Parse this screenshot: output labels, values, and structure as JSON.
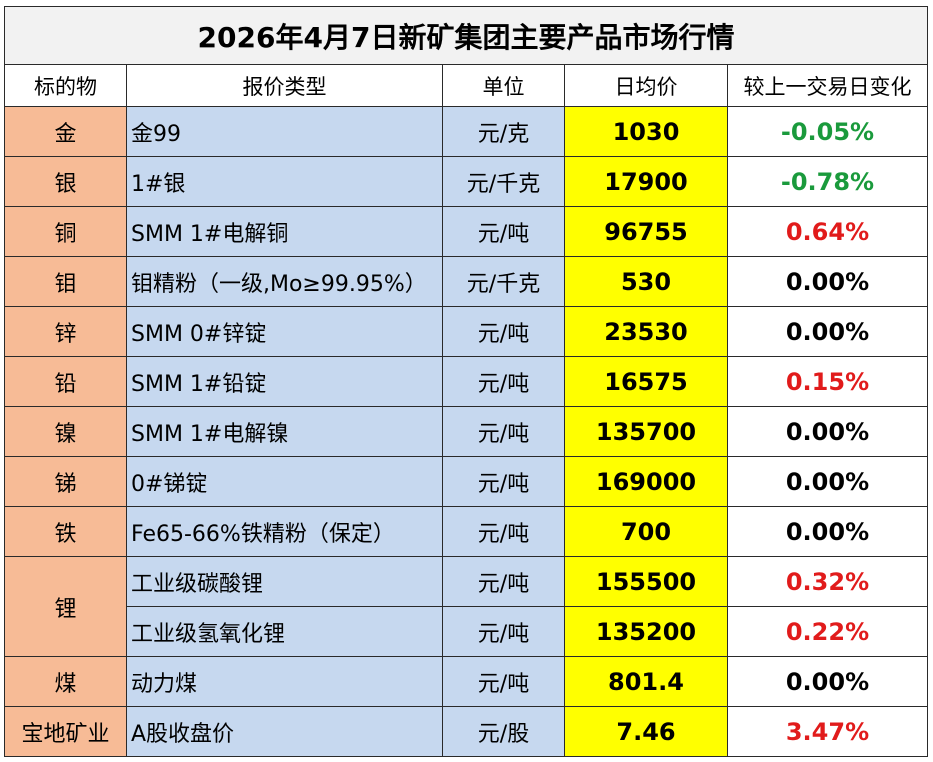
{
  "title": "2026年4月7日新矿集团主要产品市场行情",
  "headers": [
    "标的物",
    "报价类型",
    "单位",
    "日均价",
    "较上一交易日变化"
  ],
  "rows": [
    {
      "symbol": "金",
      "type": "金99",
      "unit": "元/克",
      "price": "1030",
      "change": "-0.05%",
      "dir": "neg"
    },
    {
      "symbol": "银",
      "type": "1#银",
      "unit": "元/千克",
      "price": "17900",
      "change": "-0.78%",
      "dir": "neg"
    },
    {
      "symbol": "铜",
      "type": "SMM 1#电解铜",
      "unit": "元/吨",
      "price": "96755",
      "change": "0.64%",
      "dir": "pos"
    },
    {
      "symbol": "钼",
      "type": "钼精粉（一级,Mo≥99.95%）",
      "unit": "元/千克",
      "price": "530",
      "change": "0.00%",
      "dir": "zero"
    },
    {
      "symbol": "锌",
      "type": "SMM 0#锌锭",
      "unit": "元/吨",
      "price": "23530",
      "change": "0.00%",
      "dir": "zero"
    },
    {
      "symbol": "铅",
      "type": "SMM 1#铅锭",
      "unit": "元/吨",
      "price": "16575",
      "change": "0.15%",
      "dir": "pos"
    },
    {
      "symbol": "镍",
      "type": "SMM 1#电解镍",
      "unit": "元/吨",
      "price": "135700",
      "change": "0.00%",
      "dir": "zero"
    },
    {
      "symbol": "锑",
      "type": "0#锑锭",
      "unit": "元/吨",
      "price": "169000",
      "change": "0.00%",
      "dir": "zero"
    },
    {
      "symbol": "铁",
      "type": "Fe65-66%铁精粉（保定）",
      "unit": "元/吨",
      "price": "700",
      "change": "0.00%",
      "dir": "zero"
    },
    {
      "symbol": "锂",
      "type": "工业级碳酸锂",
      "unit": "元/吨",
      "price": "155500",
      "change": "0.32%",
      "dir": "pos"
    },
    {
      "symbol": "",
      "type": "工业级氢氧化锂",
      "unit": "元/吨",
      "price": "135200",
      "change": "0.22%",
      "dir": "pos"
    },
    {
      "symbol": "煤",
      "type": "动力煤",
      "unit": "元/吨",
      "price": "801.4",
      "change": "0.00%",
      "dir": "zero"
    },
    {
      "symbol": "宝地矿业",
      "type": "A股收盘价",
      "unit": "元/股",
      "price": "7.46",
      "change": "3.47%",
      "dir": "pos"
    }
  ],
  "colors": {
    "symbol_bg": "#f7bb96",
    "type_bg": "#c6d8ef",
    "price_bg": "#ffff00",
    "title_bg": "#f2f2f2",
    "negative": "#1a9a3c",
    "positive": "#e11b1b"
  }
}
